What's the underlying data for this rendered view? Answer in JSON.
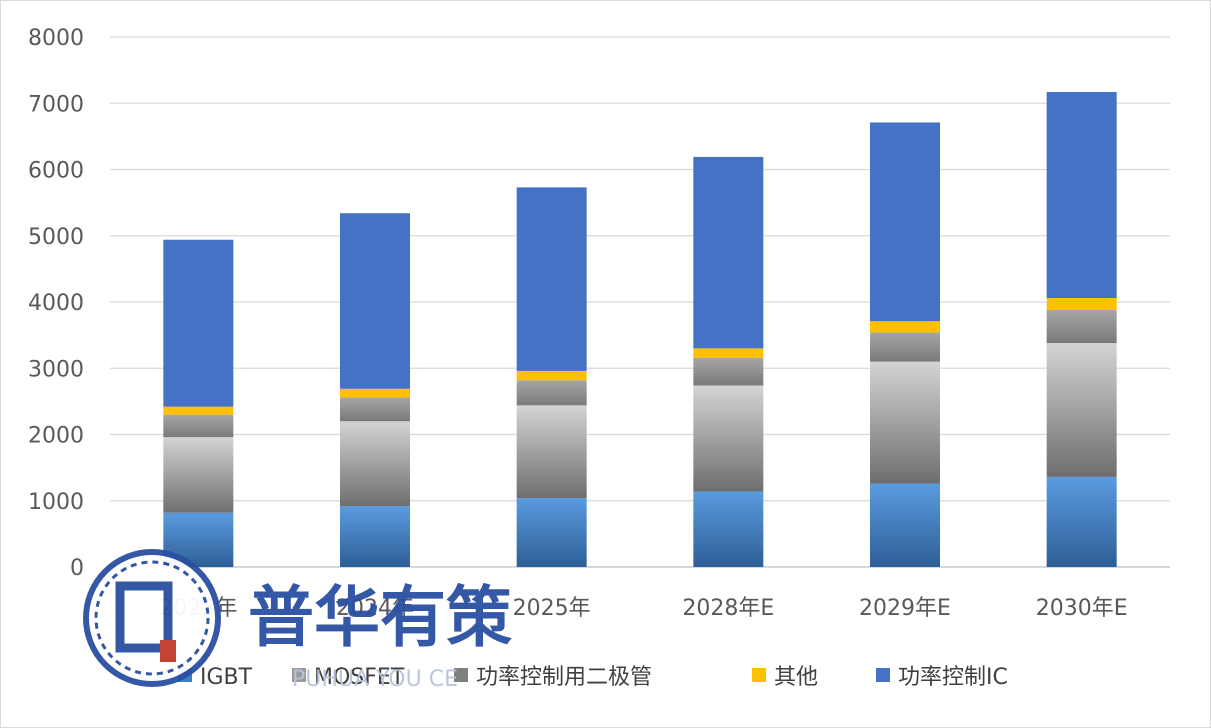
{
  "chart_data": {
    "type": "bar",
    "stacked": true,
    "categories": [
      "2023年",
      "2024年",
      "2025年",
      "2028年E",
      "2029年E",
      "2030年E"
    ],
    "series": [
      {
        "name": "IGBT",
        "values": [
          820,
          920,
          1040,
          1140,
          1260,
          1360
        ],
        "color": "#3f7fc8"
      },
      {
        "name": "MOSFET",
        "values": [
          1140,
          1280,
          1400,
          1600,
          1840,
          2020
        ],
        "color": "#9a9a9a"
      },
      {
        "name": "功率控制用二极管",
        "values": [
          340,
          360,
          380,
          420,
          440,
          500
        ],
        "color": "#7f7f7f"
      },
      {
        "name": "其他",
        "values": [
          120,
          130,
          140,
          140,
          170,
          180
        ],
        "color": "#ffc000"
      },
      {
        "name": "功率控制IC",
        "values": [
          2520,
          2650,
          2770,
          2890,
          3000,
          3110
        ],
        "color": "#4472c4"
      }
    ],
    "ylim": [
      0,
      8000
    ],
    "yticks": [
      0,
      1000,
      2000,
      3000,
      4000,
      5000,
      6000,
      7000,
      8000
    ],
    "grid": true,
    "legend_position": "bottom",
    "title": "",
    "xlabel": "",
    "ylabel": ""
  },
  "watermark": {
    "text": "普华有策",
    "subtext": "PUHUA YOU CE"
  }
}
